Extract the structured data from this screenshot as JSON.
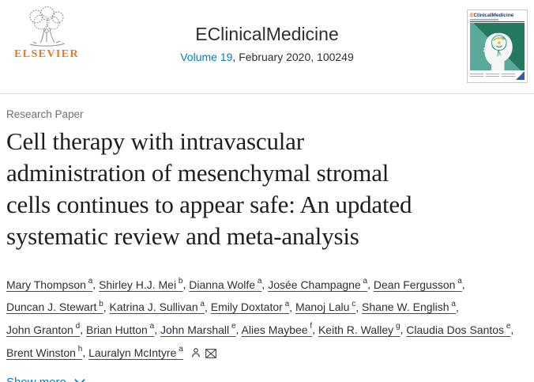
{
  "header": {
    "publisher": "ELSEVIER",
    "journal_title": "EClinicalMedicine",
    "volume_link": "Volume 19",
    "issue_info": ", February 2020, 100249",
    "cover": {
      "journal_title": "EClinicalMedicine"
    }
  },
  "article": {
    "category": "Research Paper",
    "title": "Cell therapy with intravascular administration of mesenchymal stromal cells continues to appear safe: An updated systematic review and meta-analysis",
    "title_lines": [
      "Cell therapy with intravascular",
      "administration of mesenchymal stromal",
      "cells continues to appear safe: An updated",
      "systematic review and meta-analysis"
    ],
    "authors": [
      {
        "name": "Mary Thompson",
        "sup": "a"
      },
      {
        "name": "Shirley H.J. Mei",
        "sup": "b"
      },
      {
        "name": "Dianna Wolfe",
        "sup": "a"
      },
      {
        "name": "Josée Champagne",
        "sup": "a"
      },
      {
        "name": "Dean Fergusson",
        "sup": "a"
      },
      {
        "name": "Duncan J. Stewart",
        "sup": "b"
      },
      {
        "name": "Katrina J. Sullivan",
        "sup": "a"
      },
      {
        "name": "Emily Doxtator",
        "sup": "a"
      },
      {
        "name": "Manoj Lalu",
        "sup": "c"
      },
      {
        "name": "Shane W. English",
        "sup": "a"
      },
      {
        "name": "John Granton",
        "sup": "d"
      },
      {
        "name": "Brian Hutton",
        "sup": "a"
      },
      {
        "name": "John Marshall",
        "sup": "e"
      },
      {
        "name": "Alies Maybee",
        "sup": "f"
      },
      {
        "name": "Keith R. Walley",
        "sup": "g"
      },
      {
        "name": "Claudia Dos Santos",
        "sup": "e"
      },
      {
        "name": "Brent Winston",
        "sup": "h"
      },
      {
        "name": "Lauralyn McIntyre",
        "sup": "a"
      }
    ],
    "show_more_label": "Show more"
  },
  "icons": {
    "elsevier_tree": "elsevier-tree-icon",
    "person": "person-icon",
    "envelope": "envelope-icon",
    "chevron": "chevron-down-icon"
  },
  "colors": {
    "link_blue": "#0c7dbb",
    "elsevier_orange": "#e87722",
    "text_dark": "#2e2e38",
    "label_gray": "#6e6e78",
    "cover_teal_light": "#5aa99b",
    "cover_teal_dark": "#24785f"
  }
}
